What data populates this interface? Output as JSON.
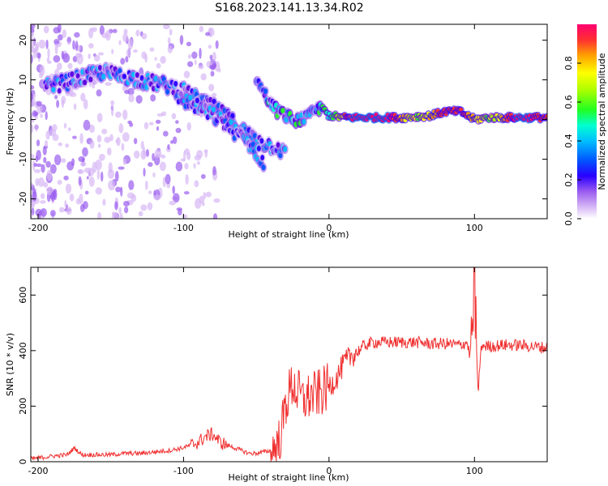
{
  "figure": {
    "title": "S168.2023.141.13.34.R02"
  },
  "chart_data": [
    {
      "type": "heatmap",
      "xlabel": "Height of straight line (km)",
      "ylabel": "Frequency (Hz)",
      "xlim": [
        -205,
        150
      ],
      "ylim": [
        -25,
        24
      ],
      "xticks": [
        -200,
        -100,
        0,
        100
      ],
      "yticks": [
        -20,
        -10,
        0,
        10,
        20
      ],
      "colorbar": {
        "label": "Normalized spectral amplitude",
        "range": [
          0,
          1
        ],
        "ticks": [
          0.0,
          0.2,
          0.4,
          0.6,
          0.8
        ],
        "colors": [
          "#ffffff",
          "#d7b8f5",
          "#9a5cf0",
          "#5a00e0",
          "#2a00ff",
          "#0055ff",
          "#00bfff",
          "#00ffd0",
          "#22ff22",
          "#aaff00",
          "#ffff00",
          "#ffa000",
          "#ff3030",
          "#ff0070"
        ]
      },
      "ridges": [
        {
          "name": "",
          "x": [
            -195,
            -185,
            -175,
            -165,
            -155,
            -145,
            -135,
            -125,
            -115,
            -105,
            -95,
            -85,
            -75,
            -65,
            -55,
            -45,
            -35,
            -30
          ],
          "y": [
            8,
            9,
            10,
            11,
            12,
            11,
            10.5,
            9.5,
            9,
            8,
            6,
            4,
            2,
            -1,
            -4,
            -6,
            -7,
            -9
          ]
        },
        {
          "name": "",
          "x": [
            -105,
            -95,
            -85,
            -75,
            -65,
            -55,
            -48,
            -45
          ],
          "y": [
            6,
            4,
            2,
            0,
            -3,
            -6,
            -9,
            -11
          ]
        },
        {
          "name": "",
          "x": [
            -50,
            -45,
            -40,
            -35,
            -30,
            -25,
            -20,
            -15,
            -10,
            -5,
            0,
            10,
            30,
            50,
            70,
            80,
            90,
            95,
            100,
            110,
            130,
            150
          ],
          "y": [
            10,
            7,
            4,
            2,
            1,
            0,
            0,
            0.5,
            2,
            3,
            1,
            0.5,
            0.5,
            0.5,
            1,
            2,
            2,
            1,
            0,
            0.5,
            0.5,
            0.5
          ]
        }
      ]
    },
    {
      "type": "line",
      "xlabel": "Height of straight line (km)",
      "ylabel": "SNR (10 * v/v)",
      "xlim": [
        -205,
        150
      ],
      "ylim": [
        0,
        700
      ],
      "xticks": [
        -200,
        -100,
        0,
        100
      ],
      "yticks": [
        0,
        200,
        400,
        600
      ],
      "color": "#f03030",
      "series": [
        {
          "x": [
            -205,
            -190,
            -180,
            -175,
            -170,
            -160,
            -150,
            -140,
            -130,
            -120,
            -110,
            -100,
            -95,
            -90,
            -85,
            -80,
            -75,
            -70,
            -65,
            -60,
            -55,
            -50,
            -45,
            -40,
            -35,
            -32,
            -30,
            -28,
            -25,
            -22,
            -20,
            -18,
            -15,
            -10,
            -5,
            0,
            5,
            10,
            15,
            20,
            25,
            30,
            40,
            50,
            60,
            70,
            80,
            90,
            95,
            98,
            100,
            102,
            105,
            110,
            120,
            130,
            140,
            150
          ],
          "y": [
            10,
            20,
            25,
            50,
            25,
            25,
            25,
            30,
            30,
            35,
            40,
            50,
            60,
            70,
            90,
            100,
            70,
            60,
            50,
            40,
            30,
            30,
            35,
            40,
            60,
            130,
            200,
            240,
            280,
            250,
            240,
            220,
            230,
            240,
            250,
            270,
            300,
            350,
            380,
            400,
            420,
            430,
            430,
            430,
            430,
            425,
            425,
            420,
            430,
            350,
            690,
            250,
            420,
            415,
            420,
            420,
            415,
            410
          ]
        }
      ]
    }
  ]
}
